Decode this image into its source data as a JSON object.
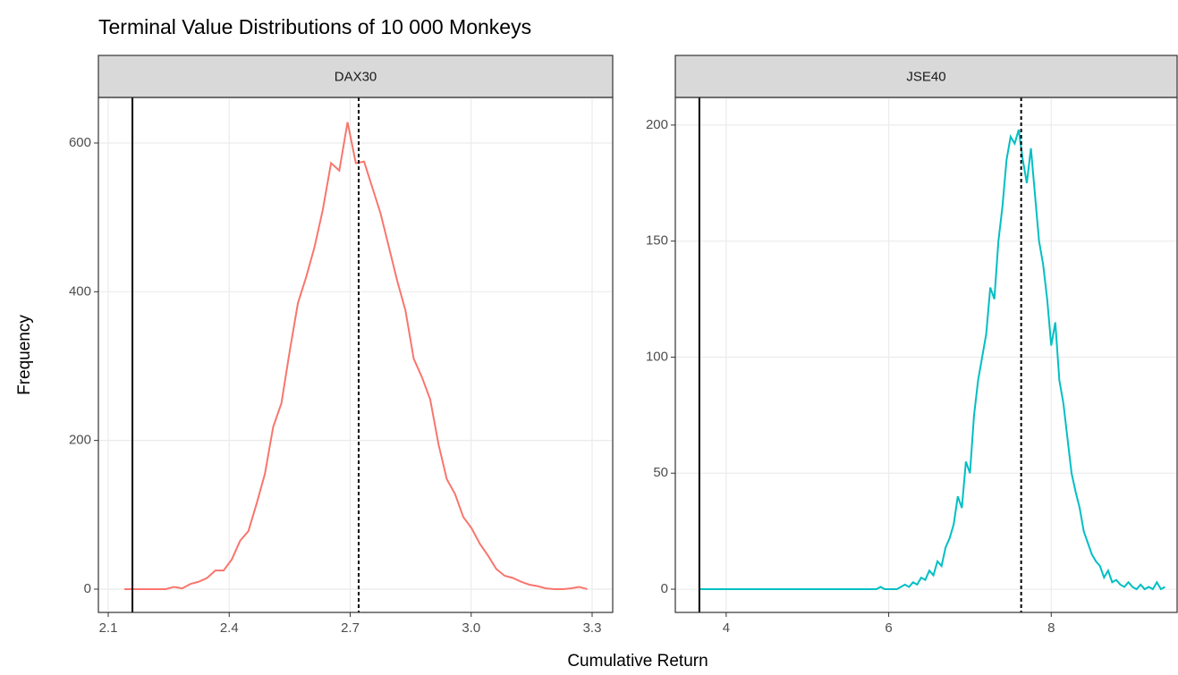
{
  "title": "Terminal Value Distributions of 10 000 Monkeys",
  "xlabel": "Cumulative Return",
  "ylabel": "Frequency",
  "chart_data": [
    {
      "type": "line",
      "title": "DAX30",
      "color": "#f8766d",
      "x": [
        2.14,
        2.1605,
        2.181,
        2.2015,
        2.222,
        2.2425,
        2.263,
        2.2835,
        2.304,
        2.3245,
        2.345,
        2.3655,
        2.386,
        2.4065,
        2.427,
        2.4475,
        2.468,
        2.4885,
        2.509,
        2.5295,
        2.55,
        2.5705,
        2.591,
        2.6115,
        2.632,
        2.6525,
        2.673,
        2.6935,
        2.714,
        2.7345,
        2.755,
        2.7755,
        2.796,
        2.8165,
        2.837,
        2.8575,
        2.878,
        2.8985,
        2.919,
        2.9395,
        2.96,
        2.9805,
        3.001,
        3.0215,
        3.042,
        3.0625,
        3.083,
        3.1035,
        3.124,
        3.1445,
        3.165,
        3.1855,
        3.206,
        3.2265,
        3.247,
        3.2675,
        3.288
      ],
      "values": [
        0,
        0,
        0,
        0,
        0,
        0,
        3,
        1,
        7,
        10,
        15,
        25,
        25,
        40,
        65,
        78,
        115,
        155,
        218,
        250,
        320,
        385,
        420,
        460,
        510,
        573,
        563,
        628,
        573,
        575,
        540,
        505,
        460,
        415,
        375,
        310,
        285,
        255,
        195,
        148,
        128,
        97,
        82,
        61,
        45,
        27,
        18,
        15,
        10,
        6,
        4,
        1,
        0,
        0,
        1,
        3,
        0
      ],
      "xlim": [
        2.0756,
        3.351
      ],
      "ylim": [
        -31.3,
        661.3
      ],
      "xticks": [
        2.1,
        2.4,
        2.7,
        {
          "value": 3,
          "label": "3.0"
        },
        3.3
      ],
      "yticks": [
        0,
        200,
        400,
        600
      ],
      "vlines": [
        {
          "x": 2.16,
          "style": "solid"
        },
        {
          "x": 2.721,
          "style": "dotted"
        }
      ],
      "grid": true
    },
    {
      "type": "line",
      "title": "JSE40",
      "color": "#00bfc4",
      "x": [
        3.67,
        5.85,
        5.9,
        5.95,
        6.0,
        6.05,
        6.1,
        6.15,
        6.2,
        6.25,
        6.3,
        6.35,
        6.4,
        6.45,
        6.5,
        6.55,
        6.6,
        6.65,
        6.7,
        6.75,
        6.8,
        6.85,
        6.9,
        6.95,
        7.0,
        7.05,
        7.1,
        7.15,
        7.2,
        7.25,
        7.3,
        7.35,
        7.4,
        7.45,
        7.5,
        7.55,
        7.6,
        7.65,
        7.7,
        7.75,
        7.8,
        7.85,
        7.9,
        7.95,
        8.0,
        8.05,
        8.1,
        8.15,
        8.2,
        8.25,
        8.3,
        8.35,
        8.4,
        8.45,
        8.5,
        8.55,
        8.6,
        8.65,
        8.7,
        8.75,
        8.8,
        8.85,
        8.9,
        8.95,
        9.0,
        9.05,
        9.1,
        9.15,
        9.2,
        9.25,
        9.3,
        9.35,
        9.4
      ],
      "values": [
        0,
        0,
        1,
        0,
        0,
        0,
        0,
        1,
        2,
        1,
        3,
        2,
        5,
        4,
        8,
        6,
        12,
        10,
        18,
        22,
        28,
        40,
        35,
        55,
        50,
        75,
        90,
        100,
        110,
        130,
        125,
        150,
        165,
        185,
        195,
        192,
        198,
        185,
        175,
        190,
        170,
        150,
        140,
        125,
        105,
        115,
        90,
        80,
        65,
        50,
        42,
        35,
        25,
        20,
        15,
        12,
        10,
        5,
        8,
        3,
        4,
        2,
        1,
        3,
        1,
        0,
        2,
        0,
        1,
        0,
        3,
        0,
        1
      ],
      "xlim": [
        3.374,
        9.549
      ],
      "ylim": [
        -10,
        211.9
      ],
      "xticks": [
        4,
        6,
        8
      ],
      "yticks": [
        0,
        50,
        100,
        150,
        200
      ],
      "vlines": [
        {
          "x": 3.67,
          "style": "solid"
        },
        {
          "x": 7.63,
          "style": "dotted"
        }
      ],
      "grid": true
    }
  ]
}
